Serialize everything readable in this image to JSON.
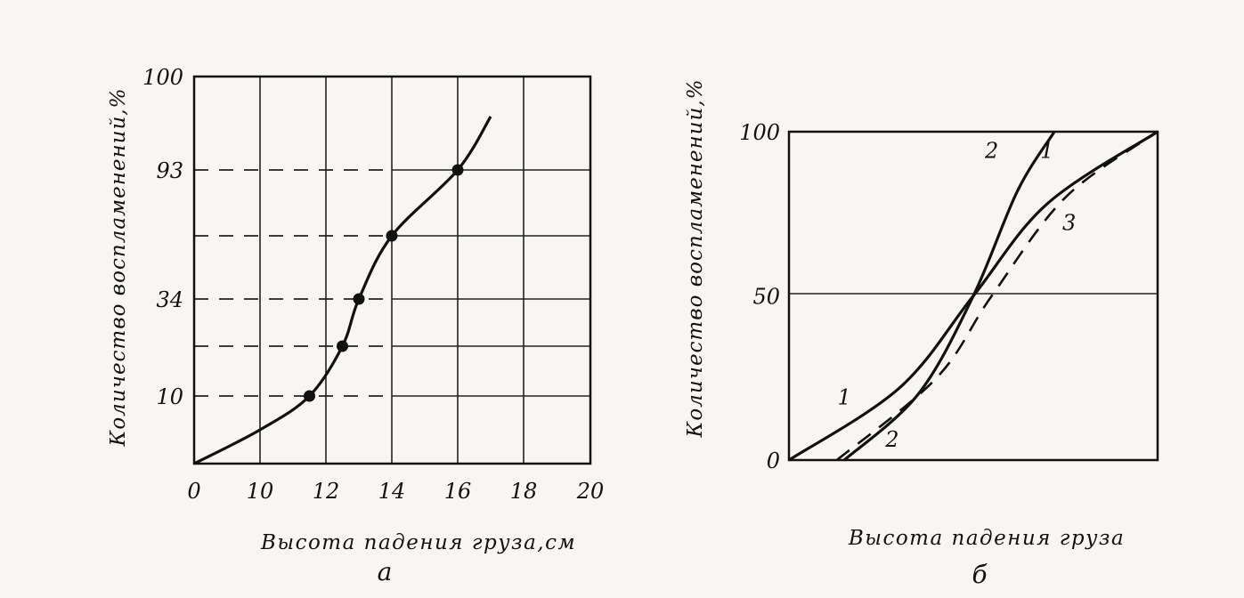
{
  "chart_data": [
    {
      "type": "line",
      "panel_label": "а",
      "ylabel": "Количество воспламенений,%",
      "xlabel": "Высота падения груза,см",
      "x_ticks": [
        "0",
        "10",
        "12",
        "14",
        "16",
        "18",
        "20"
      ],
      "y_ticks": [
        "10",
        "34",
        "93",
        "100"
      ],
      "grid": true,
      "series": [
        {
          "x": [
            0,
            10,
            11.5,
            12.5,
            13,
            14,
            16,
            17
          ],
          "y": [
            0,
            5,
            10,
            20,
            34,
            60,
            93,
            97
          ]
        }
      ],
      "points": [
        {
          "x": 11.5,
          "y": 10
        },
        {
          "x": 12.5,
          "y": 20
        },
        {
          "x": 13,
          "y": 34
        },
        {
          "x": 14,
          "y": 60
        },
        {
          "x": 16,
          "y": 93
        }
      ],
      "dashed_guides_y": [
        93,
        60,
        34,
        20,
        10
      ]
    },
    {
      "type": "line",
      "panel_label": "б",
      "ylabel": "Количество воспламенений,%",
      "xlabel": "Высота падения груза",
      "y_ticks": [
        "0",
        "50",
        "100"
      ],
      "grid": false,
      "series": [
        {
          "name": "1",
          "style": "solid",
          "x": [
            0,
            0.3,
            0.5,
            0.7,
            1.0
          ],
          "y": [
            0,
            22,
            50,
            78,
            100
          ]
        },
        {
          "name": "2",
          "style": "solid",
          "x": [
            0.15,
            0.35,
            0.5,
            0.62,
            0.72
          ],
          "y": [
            0,
            20,
            50,
            82,
            100
          ]
        },
        {
          "name": "3",
          "style": "dashed",
          "x": [
            0.13,
            0.4,
            0.55,
            0.75,
            1.0
          ],
          "y": [
            0,
            25,
            50,
            80,
            100
          ]
        }
      ],
      "curve_labels": [
        {
          "text": "1",
          "series": "1",
          "near": "bottom-left"
        },
        {
          "text": "2",
          "series": "2",
          "near": "bottom"
        },
        {
          "text": "2",
          "series": "2",
          "near": "top"
        },
        {
          "text": "1",
          "series": "1",
          "near": "top"
        },
        {
          "text": "3",
          "series": "3",
          "near": "right"
        }
      ]
    }
  ]
}
